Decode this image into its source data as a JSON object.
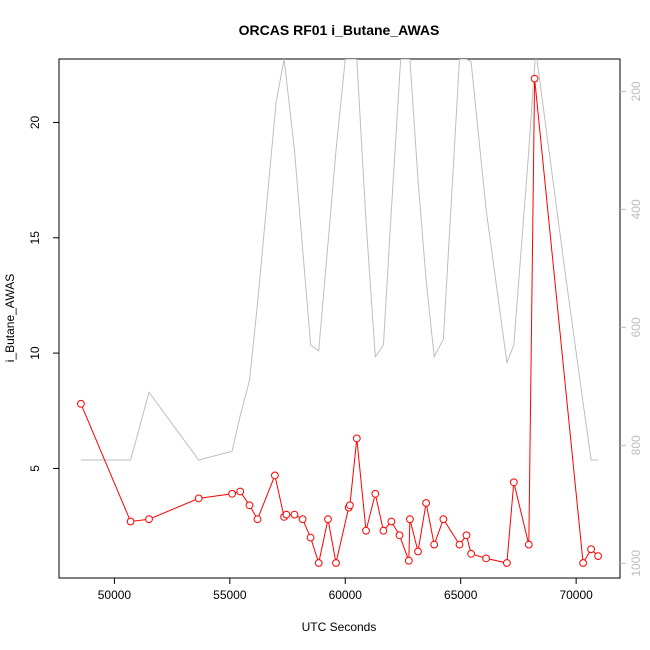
{
  "chart_data": {
    "type": "line",
    "title": "ORCAS RF01 i_Butane_AWAS",
    "xlabel": "UTC Seconds",
    "ylabel": "i_Butane_AWAS",
    "xlim": [
      47600,
      71900
    ],
    "ylim": [
      0.25,
      22.75
    ],
    "y2lim": [
      1025,
      145
    ],
    "y2_reversed": true,
    "x_ticks": [
      50000,
      55000,
      60000,
      65000,
      70000
    ],
    "y_ticks": [
      5,
      10,
      15,
      20
    ],
    "y2_ticks": [
      200,
      400,
      600,
      800,
      1000
    ],
    "grid": false,
    "colors": {
      "series": "#ff0000",
      "secondary": "#bebebe"
    },
    "series": [
      {
        "values_x": [
          48550,
          50700,
          51500,
          53650,
          55100,
          55450,
          55850,
          56200,
          56950,
          57350,
          57450,
          57800,
          58150,
          58500,
          58850,
          59250,
          59600,
          60150,
          60200,
          60500,
          60900,
          61300,
          61650,
          62000,
          62350,
          62750,
          62800,
          63150,
          63500,
          63850,
          64250,
          64950,
          65250,
          65450,
          66100,
          67000,
          67300,
          67950,
          68200,
          70300,
          70650,
          70950
        ],
        "values_y": [
          7.8,
          2.7,
          2.8,
          3.7,
          3.9,
          4.0,
          3.4,
          2.8,
          4.7,
          2.9,
          3.0,
          3.0,
          2.8,
          2.0,
          0.9,
          2.8,
          0.9,
          3.3,
          3.4,
          6.3,
          2.3,
          3.9,
          2.3,
          2.7,
          2.1,
          1.0,
          2.8,
          1.4,
          3.5,
          1.7,
          2.8,
          1.7,
          2.1,
          1.3,
          1.1,
          0.9,
          4.4,
          1.7,
          21.9,
          0.9,
          1.5,
          1.2
        ]
      },
      {
        "values_x": [
          48550,
          50700,
          51500,
          53650,
          55100,
          55450,
          55850,
          56200,
          57000,
          57350,
          57800,
          58500,
          58850,
          59600,
          60000,
          60500,
          60900,
          61300,
          61650,
          62000,
          62400,
          62800,
          63150,
          63500,
          63850,
          64250,
          64950,
          65250,
          65450,
          66100,
          67000,
          67300,
          67950,
          68250,
          69500,
          70200,
          70650,
          70950
        ],
        "values_y2": [
          825,
          825,
          710,
          825,
          810,
          750,
          690,
          560,
          220,
          145,
          300,
          630,
          640,
          300,
          145,
          145,
          420,
          650,
          630,
          400,
          145,
          145,
          350,
          520,
          650,
          620,
          145,
          145,
          150,
          400,
          660,
          630,
          300,
          130,
          500,
          700,
          825,
          825
        ]
      }
    ]
  }
}
